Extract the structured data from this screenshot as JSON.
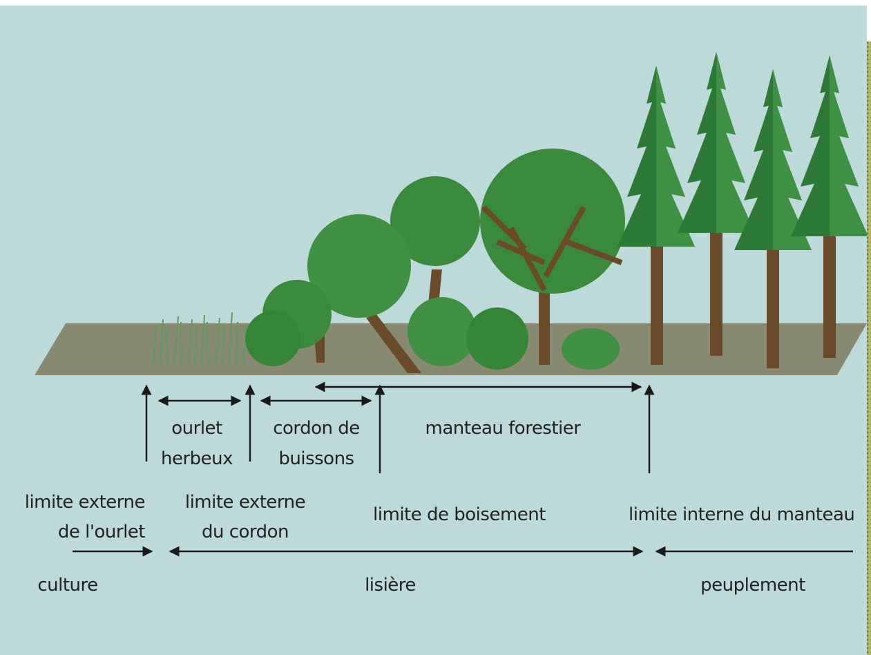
{
  "labels": {
    "ourlet_herbeux": [
      "ourlet",
      "herbeux"
    ],
    "cordon": [
      "cordon de",
      "buissons"
    ],
    "manteau": "manteau forestier",
    "limite_ourlet": [
      "limite externe",
      "de l'ourlet"
    ],
    "limite_cordon": [
      "limite externe",
      "du cordon"
    ],
    "limite_boisement": "limite de boisement",
    "limite_interne": "limite interne du manteau",
    "culture": "culture",
    "lisiere": "lisière",
    "peuplement": "peuplement"
  }
}
